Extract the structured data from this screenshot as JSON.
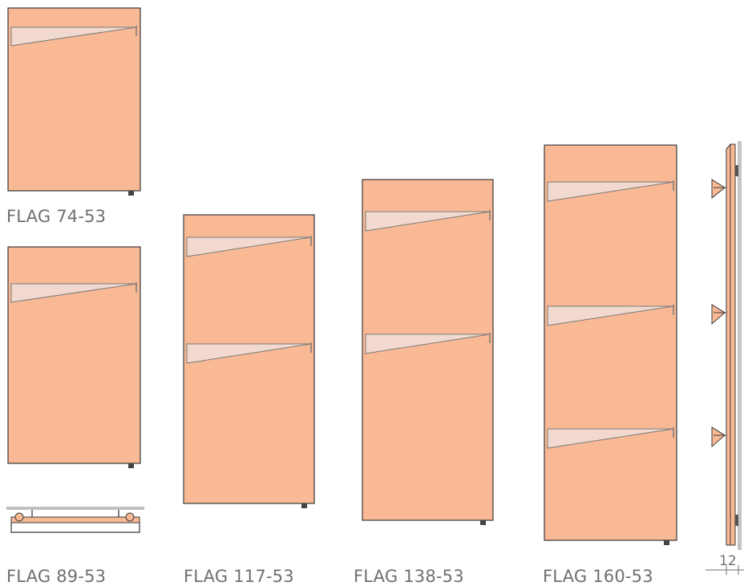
{
  "colors": {
    "panel_fill": "#f8b994",
    "panel_stroke": "#3a3a3a",
    "shelf_fill": "#f1d9cf",
    "shelf_stroke": "#7a7a7a",
    "wall": "#bdbdbd",
    "label_text": "#6d6f72"
  },
  "models": [
    {
      "label": "FLAG 74-53"
    },
    {
      "label": "FLAG 89-53"
    },
    {
      "label": "FLAG 117-53"
    },
    {
      "label": "FLAG 138-53"
    },
    {
      "label": "FLAG 160-53"
    }
  ],
  "side_dimension": "12"
}
